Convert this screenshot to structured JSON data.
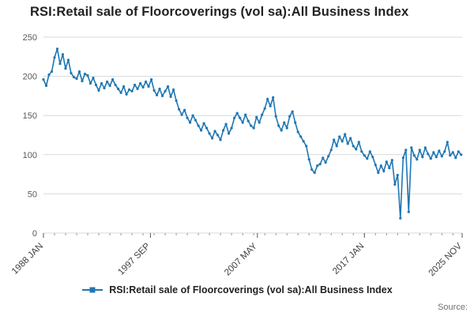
{
  "header": {
    "title": "RSI:Retail sale of Floorcoverings (vol sa):All Business Index"
  },
  "legend": {
    "label": "RSI:Retail sale of Floorcoverings (vol sa):All Business Index"
  },
  "footer": {
    "source": "Source:"
  },
  "chart_data": {
    "type": "line",
    "title": "RSI:Retail sale of Floorcoverings (vol sa):All Business Index",
    "grid": "horizontal",
    "legend_position": "bottom",
    "y_axis": {
      "min": 0,
      "max": 250,
      "ticks": [
        0,
        50,
        100,
        150,
        200,
        250
      ]
    },
    "x_axis": {
      "unit": "month",
      "start_label": "1988 JAN",
      "end_label": "2025 NOV",
      "max_month": 454,
      "minor_tick_every_months": 12,
      "ticks": [
        {
          "month": 0,
          "label": "1988 JAN"
        },
        {
          "month": 116,
          "label": "1997 SEP"
        },
        {
          "month": 232,
          "label": "2007 MAY"
        },
        {
          "month": 348,
          "label": "2017 JAN"
        },
        {
          "month": 454,
          "label": "2025 NOV"
        }
      ]
    },
    "series": [
      {
        "name": "RSI:Retail sale of Floorcoverings (vol sa):All Business Index",
        "color": "#1f77b4",
        "start": "1988 JAN",
        "interval_months": 3,
        "values": [
          196,
          188,
          202,
          206,
          224,
          235,
          216,
          228,
          210,
          221,
          204,
          199,
          197,
          206,
          194,
          203,
          201,
          191,
          198,
          189,
          182,
          191,
          185,
          193,
          188,
          196,
          189,
          184,
          179,
          187,
          177,
          183,
          181,
          189,
          184,
          191,
          186,
          193,
          187,
          196,
          182,
          176,
          184,
          175,
          181,
          187,
          174,
          183,
          169,
          158,
          151,
          157,
          147,
          141,
          150,
          144,
          137,
          131,
          140,
          134,
          127,
          121,
          130,
          125,
          119,
          131,
          139,
          127,
          134,
          147,
          153,
          147,
          141,
          151,
          143,
          137,
          134,
          148,
          141,
          151,
          159,
          171,
          162,
          173,
          149,
          137,
          131,
          141,
          134,
          149,
          155,
          141,
          129,
          123,
          117,
          111,
          94,
          81,
          77,
          86,
          88,
          96,
          90,
          98,
          106,
          119,
          111,
          123,
          117,
          126,
          114,
          121,
          111,
          107,
          116,
          104,
          99,
          95,
          104,
          97,
          87,
          77,
          86,
          79,
          91,
          83,
          93,
          62,
          74,
          19,
          96,
          106,
          27,
          109,
          99,
          94,
          106,
          97,
          109,
          101,
          95,
          103,
          97,
          105,
          98,
          104,
          116,
          99,
          103,
          96,
          104,
          100
        ]
      }
    ]
  }
}
